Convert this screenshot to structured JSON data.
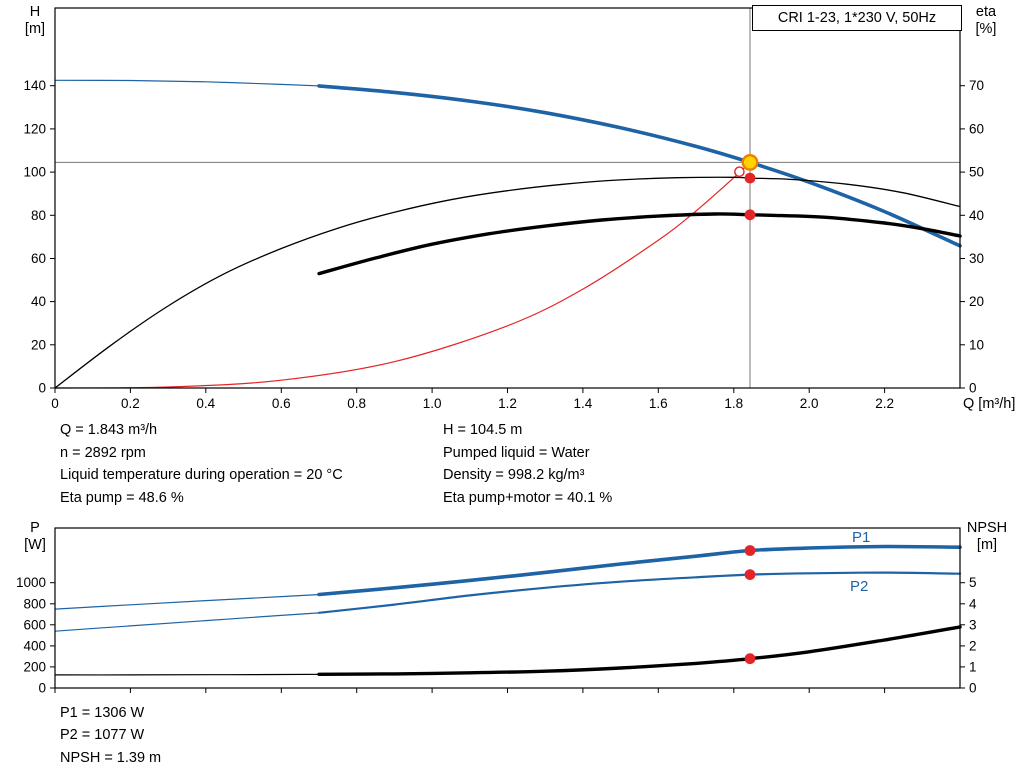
{
  "title_box": "CRI 1-23, 1*230 V, 50Hz",
  "axes": {
    "top": {
      "yl_1": "H",
      "yl_2": "[m]",
      "yr_1": "eta",
      "yr_2": "[%]",
      "x_unit": "Q [m³/h]"
    },
    "bottom": {
      "yl_1": "P",
      "yl_2": "[W]",
      "yr_1": "NPSH",
      "yr_2": "[m]"
    }
  },
  "curve_labels": {
    "p1": "P1",
    "p2": "P2"
  },
  "info": {
    "left": [
      "Q = 1.843 m³/h",
      "n = 2892 rpm",
      "Liquid temperature during operation = 20 °C",
      "Eta pump = 48.6 %"
    ],
    "right": [
      "H = 104.5 m",
      "Pumped liquid = Water",
      "Density = 998.2 kg/m³",
      "Eta pump+motor = 40.1 %"
    ]
  },
  "footer": [
    "P1 = 1306 W",
    "P2 = 1077 W",
    "NPSH = 1.39 m"
  ],
  "colors": {
    "blue": "#1e63a5",
    "red": "#e42528",
    "black": "#000000",
    "duty_fill": "#ffd400",
    "duty_stroke": "#ee7f00",
    "crosshair": "#7a7a7a"
  },
  "duty_point": {
    "Q_m3h": 1.843,
    "H_m": 104.5,
    "eta_pump_pct": 48.6,
    "eta_total_pct": 40.1,
    "P1_W": 1306,
    "P2_W": 1077,
    "NPSH_m": 1.39,
    "n_rpm": 2892
  },
  "chart_data": [
    {
      "type": "line",
      "title": "CRI 1-23, 1*230 V, 50Hz — QH and efficiency curves",
      "x": {
        "label": "Q [m³/h]",
        "min": 0,
        "max": 2.4,
        "show_labels": true,
        "ticks": [
          [
            0,
            "0"
          ],
          [
            0.2,
            "0.2"
          ],
          [
            0.4,
            "0.4"
          ],
          [
            0.6,
            "0.6"
          ],
          [
            0.8,
            "0.8"
          ],
          [
            1,
            "1.0"
          ],
          [
            1.2,
            "1.2"
          ],
          [
            1.4,
            "1.4"
          ],
          [
            1.6,
            "1.6"
          ],
          [
            1.8,
            "1.8"
          ],
          [
            2,
            "2.0"
          ],
          [
            2.2,
            "2.2"
          ]
        ]
      },
      "yl": {
        "label": "H [m]",
        "min": 0,
        "max": 176,
        "ticks": [
          [
            0,
            "0"
          ],
          [
            20,
            "20"
          ],
          [
            40,
            "40"
          ],
          [
            60,
            "60"
          ],
          [
            80,
            "80"
          ],
          [
            100,
            "100"
          ],
          [
            120,
            "120"
          ],
          [
            140,
            "140"
          ]
        ]
      },
      "yr": {
        "label": "eta [%]",
        "min": 0,
        "max": 88,
        "ticks": [
          [
            0,
            "0"
          ],
          [
            10,
            "10"
          ],
          [
            20,
            "20"
          ],
          [
            30,
            "30"
          ],
          [
            40,
            "40"
          ],
          [
            50,
            "50"
          ],
          [
            60,
            "60"
          ],
          [
            70,
            "70"
          ]
        ]
      },
      "crosshair": {
        "x": 1.843,
        "yl": 104.5
      },
      "series": [
        {
          "name": "qh-curve-thin",
          "axis": "l",
          "color": "#1e63a5",
          "width": 1.2,
          "points": [
            [
              0,
              142.5
            ],
            [
              0.2,
              142.4
            ],
            [
              0.4,
              141.8
            ],
            [
              0.6,
              140.6
            ],
            [
              0.72,
              139.8
            ]
          ]
        },
        {
          "name": "qh-curve",
          "axis": "l",
          "color": "#1e63a5",
          "width": 3.6,
          "points": [
            [
              0.7,
              139.9
            ],
            [
              0.9,
              136.9
            ],
            [
              1.1,
              132.9
            ],
            [
              1.3,
              127.5
            ],
            [
              1.5,
              120.5
            ],
            [
              1.7,
              111.9
            ],
            [
              1.843,
              104.5
            ],
            [
              2.0,
              95.3
            ],
            [
              2.2,
              81.7
            ],
            [
              2.4,
              65.8
            ]
          ]
        },
        {
          "name": "system-curve",
          "axis": "l",
          "color": "#e42528",
          "width": 1.2,
          "points": [
            [
              0,
              0
            ],
            [
              0.3,
              0.45
            ],
            [
              0.6,
              3.6
            ],
            [
              0.9,
              12.2
            ],
            [
              1.2,
              28.8
            ],
            [
              1.4,
              45.8
            ],
            [
              1.6,
              68.4
            ],
            [
              1.7,
              82.0
            ],
            [
              1.8,
              97.4
            ],
            [
              1.843,
              104.5
            ]
          ]
        },
        {
          "name": "eta-pump-curve",
          "axis": "r",
          "color": "#000000",
          "width": 1.3,
          "points": [
            [
              0,
              0
            ],
            [
              0.15,
              10
            ],
            [
              0.3,
              19
            ],
            [
              0.45,
              26.5
            ],
            [
              0.6,
              32.3
            ],
            [
              0.75,
              37
            ],
            [
              0.9,
              40.7
            ],
            [
              1.05,
              43.6
            ],
            [
              1.2,
              45.7
            ],
            [
              1.35,
              47.2
            ],
            [
              1.5,
              48.2
            ],
            [
              1.65,
              48.7
            ],
            [
              1.8,
              48.8
            ],
            [
              1.843,
              48.6
            ],
            [
              1.95,
              48.3
            ],
            [
              2.1,
              47.2
            ],
            [
              2.25,
              45.2
            ],
            [
              2.4,
              42.0
            ]
          ]
        },
        {
          "name": "eta-pump-motor-curve",
          "axis": "r",
          "color": "#000000",
          "width": 3.4,
          "points": [
            [
              0.7,
              26.5
            ],
            [
              0.85,
              30.1
            ],
            [
              1.0,
              33.3
            ],
            [
              1.15,
              35.7
            ],
            [
              1.3,
              37.5
            ],
            [
              1.45,
              38.9
            ],
            [
              1.6,
              39.8
            ],
            [
              1.75,
              40.3
            ],
            [
              1.843,
              40.1
            ],
            [
              1.9,
              40.0
            ],
            [
              2.05,
              39.5
            ],
            [
              2.2,
              38.2
            ],
            [
              2.3,
              36.9
            ],
            [
              2.4,
              35.2
            ]
          ]
        }
      ],
      "markers": [
        {
          "x": 1.815,
          "y": 100.2,
          "axis": "l",
          "kind": "open"
        },
        {
          "x": 1.843,
          "y": 104.5,
          "axis": "l",
          "kind": "duty"
        },
        {
          "x": 1.843,
          "y": 48.6,
          "axis": "r",
          "kind": "dot"
        },
        {
          "x": 1.843,
          "y": 40.1,
          "axis": "r",
          "kind": "dot"
        }
      ]
    },
    {
      "type": "line",
      "title": "Power and NPSH curves",
      "x": {
        "label": "Q [m³/h]",
        "min": 0,
        "max": 2.4,
        "show_labels": false,
        "ticks": [
          [
            0,
            "0"
          ],
          [
            0.2,
            "0.2"
          ],
          [
            0.4,
            "0.4"
          ],
          [
            0.6,
            "0.6"
          ],
          [
            0.8,
            "0.8"
          ],
          [
            1,
            "1.0"
          ],
          [
            1.2,
            "1.2"
          ],
          [
            1.4,
            "1.4"
          ],
          [
            1.6,
            "1.6"
          ],
          [
            1.8,
            "1.8"
          ],
          [
            2,
            "2.0"
          ],
          [
            2.2,
            "2.2"
          ]
        ]
      },
      "yl": {
        "label": "P [W]",
        "min": 0,
        "max": 1520,
        "ticks": [
          [
            0,
            "0"
          ],
          [
            200,
            "200"
          ],
          [
            400,
            "400"
          ],
          [
            600,
            "600"
          ],
          [
            800,
            "800"
          ],
          [
            1000,
            "1000"
          ]
        ]
      },
      "yr": {
        "label": "NPSH [m]",
        "min": 0,
        "max": 7.6,
        "ticks": [
          [
            0,
            "0"
          ],
          [
            1,
            "1"
          ],
          [
            2,
            "2"
          ],
          [
            3,
            "3"
          ],
          [
            4,
            "4"
          ],
          [
            5,
            "5"
          ]
        ]
      },
      "series": [
        {
          "name": "p1-curve-thin",
          "axis": "l",
          "color": "#1e63a5",
          "width": 1.2,
          "points": [
            [
              0,
              750
            ],
            [
              0.2,
              790
            ],
            [
              0.4,
              830
            ],
            [
              0.6,
              868
            ],
            [
              0.72,
              892
            ]
          ]
        },
        {
          "name": "p1-curve",
          "axis": "l",
          "color": "#1e63a5",
          "width": 3.6,
          "points": [
            [
              0.7,
              888
            ],
            [
              0.9,
              952
            ],
            [
              1.1,
              1022
            ],
            [
              1.3,
              1098
            ],
            [
              1.5,
              1178
            ],
            [
              1.7,
              1252
            ],
            [
              1.843,
              1306
            ],
            [
              2.0,
              1330
            ],
            [
              2.2,
              1344
            ],
            [
              2.4,
              1338
            ]
          ]
        },
        {
          "name": "p2-curve-thin",
          "axis": "l",
          "color": "#1e63a5",
          "width": 1.2,
          "points": [
            [
              0,
              540
            ],
            [
              0.2,
              590
            ],
            [
              0.4,
              640
            ],
            [
              0.6,
              690
            ],
            [
              0.72,
              718
            ]
          ]
        },
        {
          "name": "p2-curve",
          "axis": "l",
          "color": "#1e63a5",
          "width": 2.2,
          "points": [
            [
              0.7,
              714
            ],
            [
              0.9,
              792
            ],
            [
              1.1,
              880
            ],
            [
              1.3,
              952
            ],
            [
              1.5,
              1010
            ],
            [
              1.7,
              1052
            ],
            [
              1.843,
              1077
            ],
            [
              2.0,
              1090
            ],
            [
              2.2,
              1096
            ],
            [
              2.4,
              1086
            ]
          ]
        },
        {
          "name": "npsh-curve-thin",
          "axis": "r",
          "color": "#000000",
          "width": 1.2,
          "points": [
            [
              0,
              0.62
            ],
            [
              0.2,
              0.62
            ],
            [
              0.4,
              0.63
            ],
            [
              0.6,
              0.64
            ],
            [
              0.72,
              0.65
            ]
          ]
        },
        {
          "name": "npsh-curve",
          "axis": "r",
          "color": "#000000",
          "width": 3.4,
          "points": [
            [
              0.7,
              0.65
            ],
            [
              0.9,
              0.67
            ],
            [
              1.1,
              0.72
            ],
            [
              1.3,
              0.8
            ],
            [
              1.5,
              0.95
            ],
            [
              1.7,
              1.17
            ],
            [
              1.843,
              1.39
            ],
            [
              2.0,
              1.72
            ],
            [
              2.2,
              2.28
            ],
            [
              2.4,
              2.9
            ]
          ]
        }
      ],
      "markers": [
        {
          "x": 1.843,
          "y": 1306,
          "axis": "l",
          "kind": "dot"
        },
        {
          "x": 1.843,
          "y": 1077,
          "axis": "l",
          "kind": "dot"
        },
        {
          "x": 1.843,
          "y": 1.39,
          "axis": "r",
          "kind": "dot"
        }
      ]
    }
  ]
}
